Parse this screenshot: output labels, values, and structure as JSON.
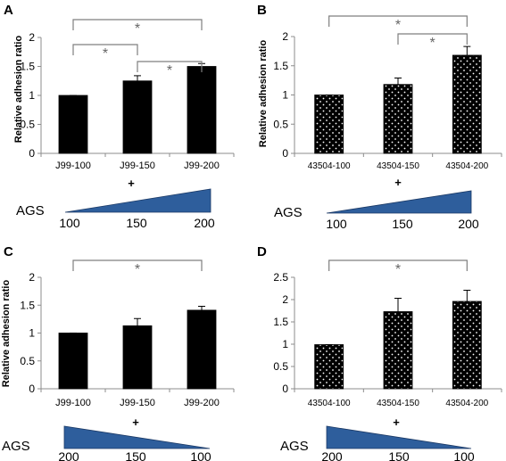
{
  "chart_data": [
    {
      "type": "bar",
      "panel": "A",
      "categories": [
        "J99-100",
        "J99-150",
        "J99-200"
      ],
      "values": [
        1.0,
        1.25,
        1.5
      ],
      "errors": [
        0,
        0.09,
        0.05
      ],
      "ylabel": "Relative adhesion ratio",
      "ylim": [
        0,
        2
      ],
      "yticks": [
        "0",
        "0.5",
        "1",
        "1.5",
        "2"
      ],
      "bar_style": "solid",
      "significance": [
        {
          "from": 0,
          "to": 1,
          "label": "*"
        },
        {
          "from": 1,
          "to": 2,
          "label": "*"
        },
        {
          "from": 0,
          "to": 2,
          "label": "*"
        }
      ],
      "gradient": {
        "plus": "+",
        "label": "AGS",
        "ticks": [
          "100",
          "150",
          "200"
        ],
        "direction": "increasing"
      }
    },
    {
      "type": "bar",
      "panel": "B",
      "categories": [
        "43504-100",
        "43504-150",
        "43504-200"
      ],
      "values": [
        1.0,
        1.18,
        1.68
      ],
      "errors": [
        0,
        0.11,
        0.15
      ],
      "ylabel": "Relative adhesion ratio",
      "ylim": [
        0,
        2
      ],
      "yticks": [
        "0",
        "0.5",
        "1",
        "1.5",
        "2"
      ],
      "bar_style": "dotted",
      "significance": [
        {
          "from": 1,
          "to": 2,
          "label": "*"
        },
        {
          "from": 0,
          "to": 2,
          "label": "*"
        }
      ],
      "gradient": {
        "plus": "+",
        "label": "AGS",
        "ticks": [
          "100",
          "150",
          "200"
        ],
        "direction": "increasing"
      }
    },
    {
      "type": "bar",
      "panel": "C",
      "categories": [
        "J99-100",
        "J99-150",
        "J99-200"
      ],
      "values": [
        1.0,
        1.13,
        1.41
      ],
      "errors": [
        0,
        0.13,
        0.07
      ],
      "ylabel": "Relative adhesion ratio",
      "ylim": [
        0,
        2
      ],
      "yticks": [
        "0",
        "0.5",
        "1",
        "1.5",
        "2"
      ],
      "bar_style": "solid",
      "significance": [
        {
          "from": 0,
          "to": 2,
          "label": "*"
        }
      ],
      "gradient": {
        "plus": "+",
        "label": "AGS",
        "ticks": [
          "200",
          "150",
          "100"
        ],
        "direction": "decreasing"
      }
    },
    {
      "type": "bar",
      "panel": "D",
      "categories": [
        "43504-100",
        "43504-150",
        "43504-200"
      ],
      "values": [
        0.99,
        1.73,
        1.96
      ],
      "errors": [
        0,
        0.3,
        0.25
      ],
      "ylabel": "",
      "ylim": [
        0,
        2.5
      ],
      "yticks": [
        "0",
        "0.5",
        "1",
        "1.5",
        "2",
        "2.5"
      ],
      "bar_style": "dotted",
      "significance": [
        {
          "from": 0,
          "to": 2,
          "label": "*"
        }
      ],
      "gradient": {
        "plus": "+",
        "label": "AGS",
        "ticks": [
          "200",
          "150",
          "100"
        ],
        "direction": "decreasing"
      }
    }
  ],
  "colors": {
    "bar": "#000000",
    "dot": "#ffffff",
    "gradient_fill": "#2e5e9c",
    "bracket": "#7f7f7f",
    "axis": "#8c8c8c"
  }
}
